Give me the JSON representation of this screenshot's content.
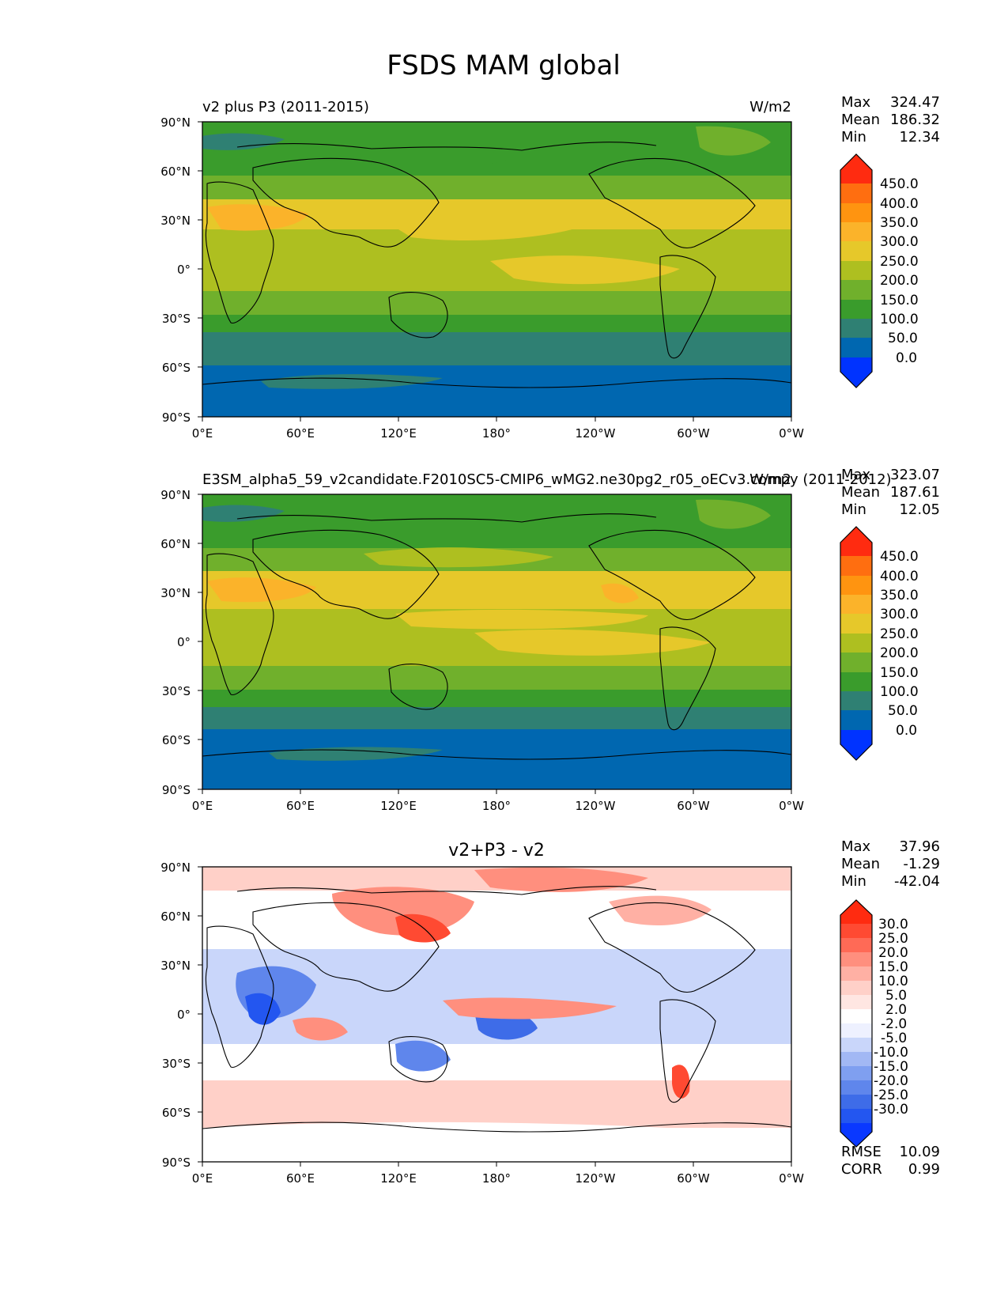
{
  "figure": {
    "title": "FSDS MAM global"
  },
  "lat_ticks": [
    "90°N",
    "60°N",
    "30°N",
    "0°",
    "30°S",
    "60°S",
    "90°S"
  ],
  "lon_ticks": [
    "0°E",
    "60°E",
    "120°E",
    "180°",
    "120°W",
    "60°W",
    "0°W"
  ],
  "colors": {
    "abs": [
      "#0033ff",
      "#0067b0",
      "#2f8073",
      "#3a9c2c",
      "#70b02c",
      "#aebf20",
      "#e6c82a",
      "#fbb32a",
      "#ff9410",
      "#ff6e10",
      "#ff2b10"
    ],
    "diff": [
      "#0a38ff",
      "#2356f0",
      "#3e6ce8",
      "#5f86ec",
      "#7f9ff0",
      "#a2b8f4",
      "#c9d6fa",
      "#eef1ff",
      "#ffffff",
      "#ffe6e2",
      "#ffd0c8",
      "#ffb0a4",
      "#ff8f7e",
      "#ff6a56",
      "#ff4a32",
      "#ff2b10"
    ]
  },
  "chart_data": [
    {
      "type": "heatmap",
      "title_left": "v2 plus P3 (2011-2015)",
      "title_right": "W/m2",
      "stats": {
        "max_label": "Max",
        "max": "324.47",
        "mean_label": "Mean",
        "mean": "186.32",
        "min_label": "Min",
        "min": "12.34"
      },
      "colorbar_levels": [
        "450.0",
        "400.0",
        "350.0",
        "300.0",
        "250.0",
        "200.0",
        "150.0",
        "100.0",
        "50.0",
        "0.0"
      ],
      "xlim": [
        0,
        360
      ],
      "ylim": [
        -90,
        90
      ]
    },
    {
      "type": "heatmap",
      "title_left": "E3SM_alpha5_59_v2candidate.F2010SC5-CMIP6_wMG2.ne30pg2_r05_oECv3.compy (2011-2012)",
      "title_right": "W/m2",
      "stats": {
        "max_label": "Max",
        "max": "323.07",
        "mean_label": "Mean",
        "mean": "187.61",
        "min_label": "Min",
        "min": "12.05"
      },
      "colorbar_levels": [
        "450.0",
        "400.0",
        "350.0",
        "300.0",
        "250.0",
        "200.0",
        "150.0",
        "100.0",
        "50.0",
        "0.0"
      ],
      "xlim": [
        0,
        360
      ],
      "ylim": [
        -90,
        90
      ]
    },
    {
      "type": "heatmap",
      "title_center": "v2+P3 - v2",
      "stats": {
        "max_label": "Max",
        "max": "37.96",
        "mean_label": "Mean",
        "mean": "-1.29",
        "min_label": "Min",
        "min": "-42.04"
      },
      "extra": {
        "rmse_label": "RMSE",
        "rmse": "10.09",
        "corr_label": "CORR",
        "corr": "0.99"
      },
      "colorbar_levels": [
        "30.0",
        "25.0",
        "20.0",
        "15.0",
        "10.0",
        "5.0",
        "2.0",
        "-2.0",
        "-5.0",
        "-10.0",
        "-15.0",
        "-20.0",
        "-25.0",
        "-30.0"
      ],
      "xlim": [
        0,
        360
      ],
      "ylim": [
        -90,
        90
      ]
    }
  ]
}
